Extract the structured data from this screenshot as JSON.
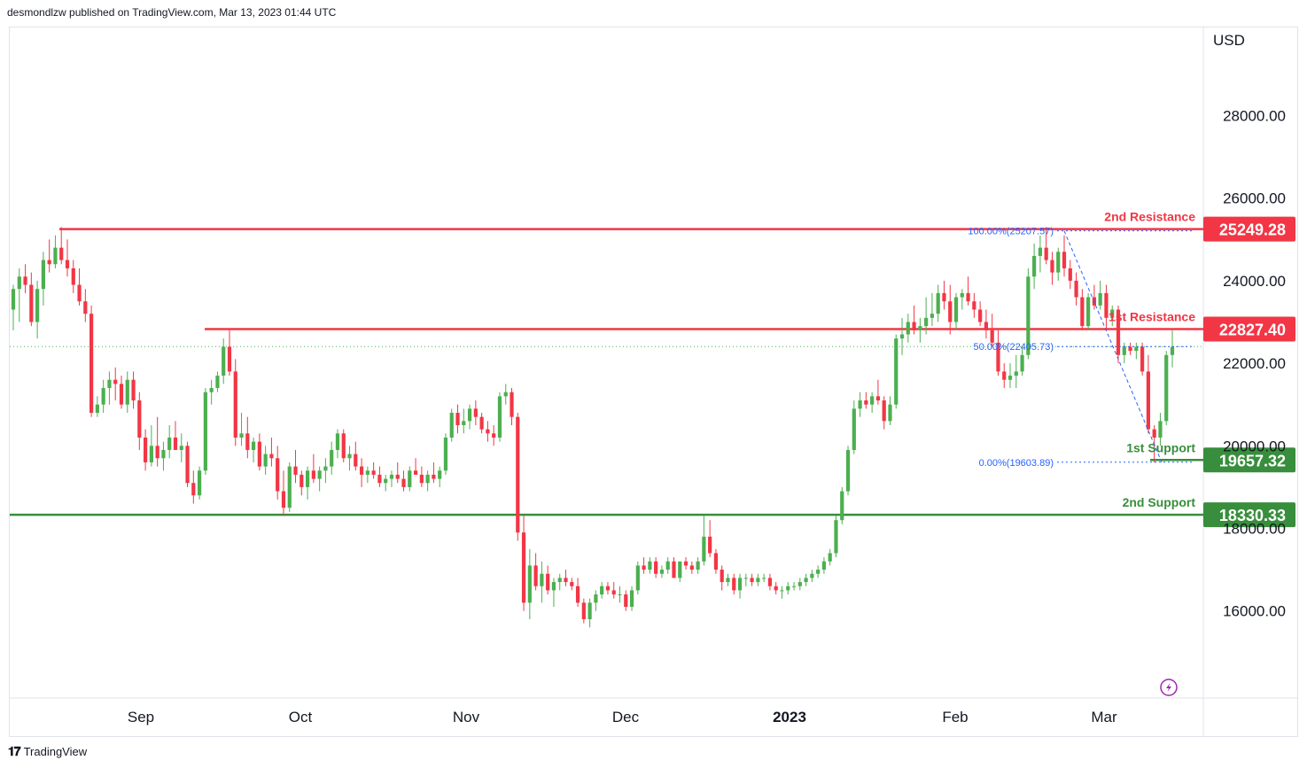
{
  "header": {
    "published_by": "desmondlzw published on TradingView.com, Mar 13, 2023 01:44 UTC"
  },
  "footer": {
    "brand": "TradingView",
    "logo": "tradingview-logo-icon"
  },
  "chart_data": {
    "type": "candlestick",
    "currency_label": "USD",
    "y_ticks": [
      "28000.00",
      "26000.00",
      "24000.00",
      "22000.00",
      "20000.00",
      "18000.00",
      "16000.00"
    ],
    "x_ticks": [
      "Sep",
      "Oct",
      "Nov",
      "Dec",
      "2023",
      "Feb",
      "Mar"
    ],
    "levels": [
      {
        "label": "2nd Resistance",
        "price": "25249.28",
        "value": 25249.28,
        "color": "#f23645"
      },
      {
        "label": "1st Resistance",
        "price": "22827.40",
        "value": 22827.4,
        "color": "#f23645"
      },
      {
        "label": "1st Support",
        "price": "19657.32",
        "value": 19657.32,
        "color": "#388e3c"
      },
      {
        "label": "2nd Support",
        "price": "18330.33",
        "value": 18330.33,
        "color": "#388e3c"
      }
    ],
    "fib_levels": [
      {
        "label": "100.00%(25207.57)",
        "value": 25207.57
      },
      {
        "label": "50.00%(22405.73)",
        "value": 22405.73
      },
      {
        "label": "0.00%(19603.89)",
        "value": 19603.89
      }
    ],
    "last_price": 22405,
    "colors": {
      "up": "#4caf50",
      "down": "#f23645",
      "resistance": "#f23645",
      "support": "#388e3c",
      "fib": "#2962ff"
    },
    "candles": [
      [
        23300,
        23900,
        22800,
        23800
      ],
      [
        23800,
        24300,
        23000,
        24100
      ],
      [
        24100,
        24400,
        23700,
        23900
      ],
      [
        23900,
        24200,
        22900,
        23000
      ],
      [
        23000,
        24000,
        22600,
        23800
      ],
      [
        23800,
        24700,
        23400,
        24500
      ],
      [
        24500,
        25000,
        24200,
        24400
      ],
      [
        24400,
        25100,
        24300,
        24800
      ],
      [
        24800,
        25300,
        24400,
        24500
      ],
      [
        24500,
        25000,
        24100,
        24300
      ],
      [
        24300,
        24500,
        23700,
        23900
      ],
      [
        23900,
        24300,
        23400,
        23500
      ],
      [
        23500,
        23800,
        23000,
        23200
      ],
      [
        23200,
        23400,
        20700,
        20800
      ],
      [
        20800,
        21200,
        20700,
        21000
      ],
      [
        21000,
        21600,
        20800,
        21400
      ],
      [
        21400,
        21800,
        21000,
        21600
      ],
      [
        21600,
        21900,
        21100,
        21500
      ],
      [
        21500,
        21700,
        20900,
        21000
      ],
      [
        21000,
        21800,
        20800,
        21600
      ],
      [
        21600,
        21800,
        20900,
        21100
      ],
      [
        21100,
        21300,
        19900,
        20200
      ],
      [
        20200,
        20400,
        19400,
        19600
      ],
      [
        19600,
        20500,
        19500,
        20000
      ],
      [
        20000,
        20700,
        19500,
        19700
      ],
      [
        19700,
        20100,
        19400,
        19900
      ],
      [
        19900,
        20500,
        19700,
        20200
      ],
      [
        20200,
        20600,
        19900,
        19900
      ],
      [
        19900,
        20300,
        19600,
        20000
      ],
      [
        20000,
        20100,
        19000,
        19100
      ],
      [
        19100,
        19400,
        18600,
        18800
      ],
      [
        18800,
        19500,
        18700,
        19400
      ],
      [
        19400,
        21400,
        19300,
        21300
      ],
      [
        21300,
        21600,
        21000,
        21400
      ],
      [
        21400,
        21800,
        21300,
        21700
      ],
      [
        21700,
        22600,
        21500,
        22400
      ],
      [
        22400,
        22800,
        21700,
        21800
      ],
      [
        21800,
        22100,
        20000,
        20200
      ],
      [
        20200,
        20800,
        20000,
        20300
      ],
      [
        20300,
        20700,
        19700,
        19900
      ],
      [
        19900,
        20200,
        19600,
        20100
      ],
      [
        20100,
        20300,
        19400,
        19500
      ],
      [
        19500,
        20000,
        19300,
        19800
      ],
      [
        19800,
        20200,
        19500,
        19700
      ],
      [
        19700,
        20000,
        18700,
        18900
      ],
      [
        18900,
        19400,
        18300,
        18500
      ],
      [
        18500,
        19600,
        18400,
        19500
      ],
      [
        19500,
        19900,
        19100,
        19300
      ],
      [
        19300,
        19400,
        18800,
        19000
      ],
      [
        19000,
        19500,
        18700,
        19400
      ],
      [
        19400,
        19800,
        19100,
        19200
      ],
      [
        19200,
        19500,
        18900,
        19400
      ],
      [
        19400,
        19700,
        19100,
        19500
      ],
      [
        19500,
        20100,
        19300,
        19900
      ],
      [
        19900,
        20400,
        19700,
        20300
      ],
      [
        20300,
        20400,
        19600,
        19700
      ],
      [
        19700,
        20000,
        19400,
        19800
      ],
      [
        19800,
        20100,
        19400,
        19500
      ],
      [
        19500,
        19700,
        19000,
        19300
      ],
      [
        19300,
        19500,
        19100,
        19400
      ],
      [
        19400,
        19600,
        19200,
        19300
      ],
      [
        19300,
        19500,
        19000,
        19100
      ],
      [
        19100,
        19300,
        18900,
        19200
      ],
      [
        19200,
        19400,
        19000,
        19300
      ],
      [
        19300,
        19600,
        19100,
        19200
      ],
      [
        19200,
        19400,
        18900,
        19000
      ],
      [
        19000,
        19500,
        18900,
        19400
      ],
      [
        19400,
        19700,
        19300,
        19300
      ],
      [
        19300,
        19500,
        19000,
        19100
      ],
      [
        19100,
        19400,
        18900,
        19300
      ],
      [
        19300,
        19600,
        19100,
        19200
      ],
      [
        19200,
        19500,
        19000,
        19400
      ],
      [
        19400,
        20300,
        19300,
        20200
      ],
      [
        20200,
        20900,
        20100,
        20800
      ],
      [
        20800,
        21000,
        20300,
        20500
      ],
      [
        20500,
        20900,
        20300,
        20600
      ],
      [
        20600,
        21000,
        20400,
        20900
      ],
      [
        20900,
        21100,
        20500,
        20700
      ],
      [
        20700,
        20800,
        20300,
        20400
      ],
      [
        20400,
        20600,
        20100,
        20300
      ],
      [
        20300,
        20500,
        20000,
        20200
      ],
      [
        20200,
        21300,
        20100,
        21200
      ],
      [
        21200,
        21500,
        21000,
        21300
      ],
      [
        21300,
        21400,
        20500,
        20700
      ],
      [
        20700,
        20800,
        17700,
        17900
      ],
      [
        17900,
        18300,
        16000,
        16200
      ],
      [
        16200,
        17500,
        15800,
        17100
      ],
      [
        17100,
        17400,
        16500,
        16600
      ],
      [
        16600,
        17200,
        16200,
        16900
      ],
      [
        16900,
        17100,
        16400,
        16500
      ],
      [
        16500,
        16800,
        16100,
        16700
      ],
      [
        16700,
        16900,
        16500,
        16800
      ],
      [
        16800,
        17000,
        16600,
        16700
      ],
      [
        16700,
        16800,
        16500,
        16600
      ],
      [
        16600,
        16800,
        16100,
        16200
      ],
      [
        16200,
        16300,
        15700,
        15800
      ],
      [
        15800,
        16300,
        15600,
        16200
      ],
      [
        16200,
        16500,
        16000,
        16400
      ],
      [
        16400,
        16700,
        16300,
        16600
      ],
      [
        16600,
        16700,
        16400,
        16500
      ],
      [
        16500,
        16700,
        16300,
        16400
      ],
      [
        16400,
        16600,
        16200,
        16400
      ],
      [
        16400,
        16500,
        16000,
        16100
      ],
      [
        16100,
        16600,
        16000,
        16500
      ],
      [
        16500,
        17200,
        16400,
        17100
      ],
      [
        17100,
        17300,
        16900,
        17000
      ],
      [
        17000,
        17300,
        16900,
        17200
      ],
      [
        17200,
        17300,
        16800,
        16900
      ],
      [
        16900,
        17100,
        16800,
        17000
      ],
      [
        17000,
        17300,
        16900,
        17200
      ],
      [
        17200,
        17300,
        16800,
        16800
      ],
      [
        16800,
        17200,
        16700,
        17200
      ],
      [
        17200,
        17300,
        17000,
        17100
      ],
      [
        17100,
        17200,
        16900,
        17000
      ],
      [
        17000,
        17300,
        16900,
        17200
      ],
      [
        17200,
        18300,
        17100,
        17800
      ],
      [
        17800,
        18200,
        17300,
        17400
      ],
      [
        17400,
        17500,
        16900,
        17000
      ],
      [
        17000,
        17100,
        16500,
        16700
      ],
      [
        16700,
        16900,
        16600,
        16800
      ],
      [
        16800,
        16900,
        16400,
        16500
      ],
      [
        16500,
        16900,
        16300,
        16800
      ],
      [
        16800,
        16900,
        16600,
        16800
      ],
      [
        16800,
        16900,
        16600,
        16700
      ],
      [
        16700,
        16900,
        16600,
        16800
      ],
      [
        16800,
        16900,
        16700,
        16800
      ],
      [
        16800,
        16900,
        16500,
        16600
      ],
      [
        16600,
        16700,
        16400,
        16500
      ],
      [
        16500,
        16600,
        16300,
        16500
      ],
      [
        16500,
        16700,
        16400,
        16600
      ],
      [
        16600,
        16700,
        16500,
        16600
      ],
      [
        16600,
        16800,
        16500,
        16700
      ],
      [
        16700,
        16900,
        16600,
        16800
      ],
      [
        16800,
        17000,
        16700,
        16900
      ],
      [
        16900,
        17100,
        16800,
        17000
      ],
      [
        17000,
        17300,
        16900,
        17200
      ],
      [
        17200,
        17500,
        17100,
        17400
      ],
      [
        17400,
        18300,
        17300,
        18200
      ],
      [
        18200,
        19000,
        18100,
        18900
      ],
      [
        18900,
        20000,
        18800,
        19900
      ],
      [
        19900,
        21100,
        19800,
        20900
      ],
      [
        20900,
        21300,
        20700,
        21100
      ],
      [
        21100,
        21300,
        20900,
        21000
      ],
      [
        21000,
        21300,
        20800,
        21200
      ],
      [
        21200,
        21600,
        21000,
        21100
      ],
      [
        21100,
        21200,
        20400,
        20600
      ],
      [
        20600,
        21200,
        20500,
        21000
      ],
      [
        21000,
        22700,
        20900,
        22600
      ],
      [
        22600,
        23100,
        22200,
        22700
      ],
      [
        22700,
        23200,
        22500,
        23000
      ],
      [
        23000,
        23400,
        22700,
        22800
      ],
      [
        22800,
        23100,
        22500,
        22900
      ],
      [
        22900,
        23600,
        22700,
        23100
      ],
      [
        23100,
        23700,
        22900,
        23200
      ],
      [
        23200,
        23900,
        23000,
        23700
      ],
      [
        23700,
        24000,
        23300,
        23500
      ],
      [
        23500,
        23900,
        22700,
        23000
      ],
      [
        23000,
        23700,
        22800,
        23600
      ],
      [
        23600,
        23800,
        23300,
        23700
      ],
      [
        23700,
        24100,
        23400,
        23500
      ],
      [
        23500,
        23700,
        23100,
        23300
      ],
      [
        23300,
        23500,
        22900,
        23000
      ],
      [
        23000,
        23300,
        22600,
        22800
      ],
      [
        22800,
        23200,
        22400,
        22500
      ],
      [
        22500,
        22800,
        21700,
        21800
      ],
      [
        21800,
        22000,
        21400,
        21600
      ],
      [
        21600,
        22000,
        21400,
        21700
      ],
      [
        21700,
        22200,
        21400,
        21800
      ],
      [
        21800,
        22400,
        21700,
        22200
      ],
      [
        22200,
        24300,
        22100,
        24100
      ],
      [
        24100,
        24900,
        23800,
        24600
      ],
      [
        24600,
        25100,
        24200,
        24800
      ],
      [
        24800,
        25300,
        24400,
        24500
      ],
      [
        24500,
        24700,
        23900,
        24200
      ],
      [
        24200,
        24800,
        24000,
        24700
      ],
      [
        24700,
        25100,
        24100,
        24300
      ],
      [
        24300,
        24500,
        23800,
        24000
      ],
      [
        24000,
        24200,
        23400,
        23600
      ],
      [
        23600,
        23800,
        22800,
        22900
      ],
      [
        22900,
        23700,
        22800,
        23600
      ],
      [
        23600,
        23900,
        23300,
        23400
      ],
      [
        23400,
        24000,
        23300,
        23700
      ],
      [
        23700,
        23900,
        22800,
        23100
      ],
      [
        23100,
        23400,
        22900,
        23300
      ],
      [
        23300,
        23400,
        22000,
        22200
      ],
      [
        22200,
        22500,
        22000,
        22400
      ],
      [
        22400,
        22500,
        22200,
        22300
      ],
      [
        22300,
        22500,
        22100,
        22400
      ],
      [
        22400,
        22500,
        21700,
        21800
      ],
      [
        21800,
        22200,
        20300,
        20400
      ],
      [
        20400,
        20500,
        19600,
        20200
      ],
      [
        20200,
        20800,
        20000,
        20600
      ],
      [
        20600,
        22300,
        20500,
        22200
      ],
      [
        22200,
        22800,
        21900,
        22400
      ]
    ]
  }
}
